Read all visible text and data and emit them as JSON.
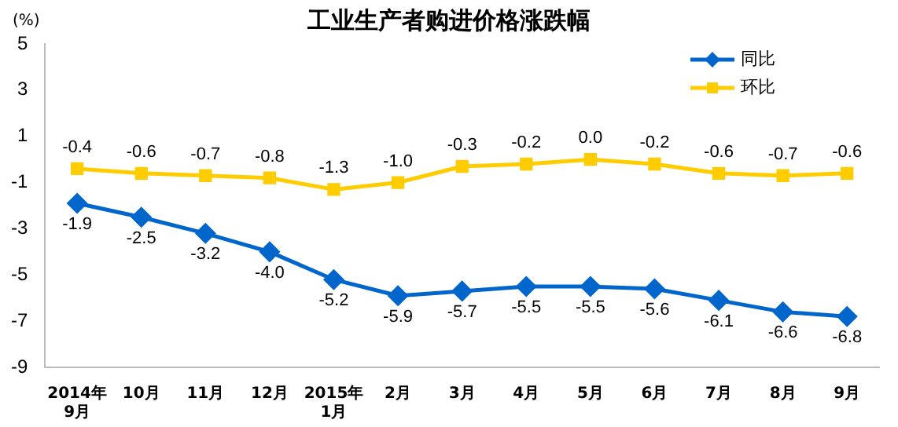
{
  "chart_data": {
    "type": "line",
    "title": "工业生产者购进价格涨跌幅",
    "ylabel": "(%)",
    "categories": [
      "2014年\n9月",
      "10月",
      "11月",
      "12月",
      "2015年\n1月",
      "2月",
      "3月",
      "4月",
      "5月",
      "6月",
      "7月",
      "8月",
      "9月"
    ],
    "series": [
      {
        "name": "同比",
        "color": "#0066cc",
        "marker": "diamond",
        "values": [
          -1.9,
          -2.5,
          -3.2,
          -4,
          -5.2,
          -5.9,
          -5.7,
          -5.5,
          -5.5,
          -5.6,
          -6.1,
          -6.6,
          -6.8
        ],
        "value_labels": [
          "-1.9",
          "-2.5",
          "-3.2",
          "-4.0",
          "-5.2",
          "-5.9",
          "-5.7",
          "-5.5",
          "-5.5",
          "-5.6",
          "-6.1",
          "-6.6",
          "-6.8"
        ]
      },
      {
        "name": "环比",
        "color": "#ffcc00",
        "marker": "square",
        "values": [
          -0.4,
          -0.6,
          -0.7,
          -0.8,
          -1.3,
          -1,
          -0.3,
          -0.2,
          0,
          -0.2,
          -0.6,
          -0.7,
          -0.6
        ],
        "value_labels": [
          "-0.4",
          "-0.6",
          "-0.7",
          "-0.8",
          "-1.3",
          "-1.0",
          "-0.3",
          "-0.2",
          "0.0",
          "-0.2",
          "-0.6",
          "-0.7",
          "-0.6"
        ]
      }
    ],
    "ylim": [
      -9,
      5
    ],
    "yticks": [
      -9,
      -7,
      -5,
      -3,
      -1,
      1,
      3,
      5
    ],
    "grid": false,
    "legend": "top right"
  }
}
